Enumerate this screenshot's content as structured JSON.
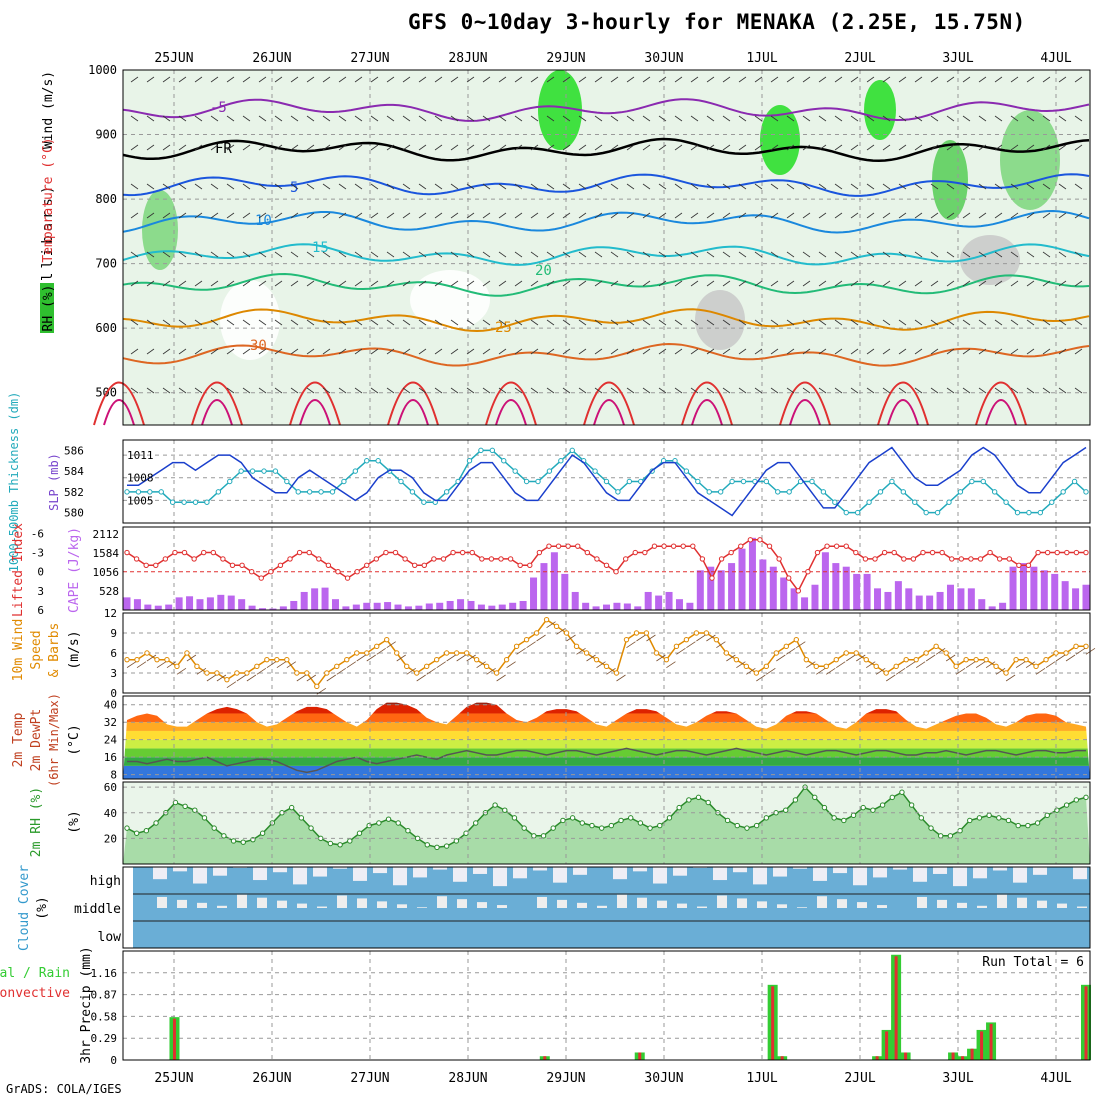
{
  "title": "GFS 0~10day 3-hourly for MENAKA (2.25E, 15.75N)",
  "credit": "GrADS: COLA/IGES",
  "colors": {
    "rh": "#2fbf2f",
    "temp": "#e03030",
    "lifted": "#e03030",
    "cape": "#bb66ee",
    "slp": "#1a3fcc",
    "thick": "#22aabb",
    "wind": "#e08a00",
    "rh2m": "#2a9a2a",
    "cloud": "#3399cc",
    "precip_total": "#33cc33",
    "precip_conv": "#e03030"
  },
  "chart_data": {
    "type": "meteogram",
    "x_dates": [
      "25JUN",
      "26JUN",
      "27JUN",
      "28JUN",
      "29JUN",
      "30JUN",
      "1JUL",
      "2JUL",
      "3JUL",
      "4JUL"
    ],
    "panels": {
      "upper_air": {
        "ylabels": [
          "Wind (m/s)",
          "Temperature (°C)",
          "RH (%)"
        ],
        "yaxis_label": "(millibars)",
        "ticks": [
          500,
          600,
          700,
          800,
          900,
          1000
        ],
        "isotherm_labels": [
          "-5",
          "FR",
          "5",
          "10",
          "15",
          "20",
          "25",
          "30"
        ]
      },
      "slp_thickness": {
        "left_label": "1000-500mb Thickness (dm)",
        "right_label": "SLP (mb)",
        "left_ticks": [
          580,
          582,
          584,
          586
        ],
        "right_ticks": [
          1005,
          1008,
          1011
        ],
        "slp": [
          1007,
          1007,
          1008,
          1009,
          1010,
          1010,
          1009,
          1010,
          1011,
          1011,
          1010,
          1008,
          1007,
          1006,
          1006,
          1008,
          1009,
          1008,
          1007,
          1006,
          1005,
          1006,
          1008,
          1009,
          1009,
          1008,
          1006,
          1005,
          1005,
          1007,
          1009,
          1010,
          1010,
          1008,
          1006,
          1005,
          1005,
          1007,
          1009,
          1011,
          1010,
          1008,
          1006,
          1005,
          1005,
          1007,
          1009,
          1010,
          1010,
          1008,
          1006,
          1005,
          1004,
          1003,
          1005,
          1007,
          1009,
          1010,
          1010,
          1008,
          1006,
          1004,
          1004,
          1006,
          1008,
          1010,
          1011,
          1012,
          1010,
          1008,
          1007,
          1007,
          1008,
          1009,
          1011,
          1012,
          1011,
          1009,
          1007,
          1006,
          1006,
          1008,
          1010,
          1011,
          1012
        ],
        "thickness": [
          582,
          582,
          582,
          582,
          581,
          581,
          581,
          581,
          582,
          583,
          584,
          584,
          584,
          584,
          583,
          582,
          582,
          582,
          582,
          583,
          584,
          585,
          585,
          584,
          583,
          582,
          581,
          581,
          582,
          583,
          585,
          586,
          586,
          585,
          584,
          583,
          583,
          584,
          585,
          586,
          585,
          584,
          583,
          582,
          583,
          583,
          584,
          585,
          585,
          584,
          583,
          582,
          582,
          583,
          583,
          583,
          583,
          582,
          582,
          583,
          583,
          582,
          581,
          580,
          580,
          581,
          582,
          583,
          582,
          581,
          580,
          580,
          581,
          582,
          583,
          583,
          582,
          581,
          580,
          580,
          580,
          581,
          582,
          583,
          582
        ]
      },
      "lifted_cape": {
        "left_label": "Lifted Index",
        "right_label": "CAPE (J/kg)",
        "left_ticks": [
          -6,
          -3,
          0,
          3,
          6
        ],
        "right_ticks": [
          528,
          1056,
          1584,
          2112
        ],
        "lifted_index": [
          -3,
          -2,
          -1,
          -1,
          -2,
          -3,
          -3,
          -2,
          -3,
          -3,
          -2,
          -1,
          -1,
          0,
          1,
          0,
          -1,
          -2,
          -3,
          -3,
          -2,
          -1,
          0,
          1,
          0,
          -1,
          -2,
          -3,
          -3,
          -2,
          -1,
          -1,
          -2,
          -2,
          -3,
          -3,
          -3,
          -2,
          -2,
          -2,
          -2,
          -1,
          -1,
          -3,
          -4,
          -4,
          -4,
          -4,
          -3,
          -2,
          -1,
          0,
          -2,
          -3,
          -3,
          -4,
          -4,
          -4,
          -4,
          -4,
          -2,
          1,
          -2,
          -3,
          -4,
          -5,
          -5,
          -4,
          -2,
          1,
          3,
          0,
          -3,
          -4,
          -4,
          -4,
          -3,
          -2,
          -2,
          -3,
          -3,
          -2,
          -2,
          -3,
          -3,
          -3,
          -2,
          -2,
          -2,
          -2,
          -3,
          -2,
          -2,
          -1,
          -1,
          -3,
          -3,
          -3,
          -3,
          -3,
          -3
        ],
        "cape": [
          350,
          300,
          150,
          120,
          150,
          350,
          380,
          300,
          350,
          420,
          400,
          300,
          120,
          50,
          40,
          100,
          250,
          500,
          600,
          620,
          300,
          100,
          150,
          200,
          200,
          220,
          150,
          100,
          120,
          180,
          200,
          250,
          300,
          250,
          150,
          120,
          150,
          200,
          250,
          900,
          1300,
          1600,
          1000,
          500,
          200,
          100,
          150,
          200,
          180,
          100,
          500,
          400,
          500,
          300,
          200,
          1100,
          1200,
          1100,
          1300,
          1700,
          2000,
          1400,
          1200,
          900,
          600,
          350,
          700,
          1600,
          1300,
          1200,
          1000,
          1000,
          600,
          500,
          800,
          600,
          400,
          400,
          500,
          700,
          600,
          600,
          300,
          100,
          200,
          1200,
          1300,
          1200,
          1100,
          1000,
          800,
          600,
          700
        ]
      },
      "wind10m": {
        "ylabel": "10m Wind Speed & Barbs (m/s)",
        "ticks": [
          0,
          3,
          6,
          9,
          12
        ],
        "speed": [
          5,
          5,
          6,
          5,
          5,
          4,
          6,
          4,
          3,
          3,
          2,
          3,
          3,
          4,
          5,
          5,
          5,
          3,
          3,
          1,
          3,
          4,
          5,
          6,
          6,
          7,
          8,
          6,
          4,
          3,
          4,
          5,
          6,
          6,
          6,
          5,
          4,
          3,
          5,
          7,
          8,
          9,
          11,
          10,
          9,
          7,
          6,
          5,
          4,
          3,
          8,
          9,
          9,
          6,
          5,
          7,
          8,
          9,
          9,
          8,
          6,
          5,
          4,
          3,
          4,
          6,
          7,
          8,
          5,
          4,
          4,
          5,
          6,
          6,
          5,
          4,
          3,
          4,
          5,
          5,
          6,
          7,
          6,
          4,
          5,
          5,
          5,
          4,
          3,
          5,
          5,
          4,
          5,
          6,
          6,
          7,
          7
        ]
      },
      "temp2m": {
        "ylabel": "2m Temp 2m DewPt (6hr Min/Max) (°C)",
        "ticks": [
          8,
          16,
          24,
          32,
          40
        ],
        "temp": [
          33,
          35,
          36,
          35,
          31,
          30,
          30,
          33,
          36,
          38,
          39,
          38,
          36,
          32,
          30,
          31,
          34,
          37,
          39,
          39,
          38,
          35,
          32,
          30,
          33,
          38,
          41,
          41,
          40,
          38,
          34,
          32,
          31,
          35,
          39,
          41,
          41,
          40,
          36,
          33,
          32,
          34,
          37,
          38,
          38,
          37,
          34,
          31,
          30,
          33,
          36,
          38,
          38,
          37,
          34,
          31,
          30,
          32,
          35,
          37,
          37,
          36,
          33,
          30,
          29,
          31,
          35,
          37,
          37,
          36,
          33,
          30,
          29,
          32,
          36,
          38,
          38,
          37,
          33,
          30,
          29,
          31,
          33,
          35,
          36,
          36,
          34,
          31,
          30,
          32,
          35,
          36,
          36,
          35,
          32,
          31,
          30
        ],
        "dewpt": [
          14,
          14,
          13,
          14,
          15,
          14,
          14,
          15,
          16,
          14,
          12,
          13,
          14,
          15,
          15,
          14,
          12,
          10,
          9,
          10,
          12,
          14,
          15,
          16,
          14,
          13,
          14,
          15,
          16,
          17,
          16,
          15,
          17,
          18,
          19,
          18,
          17,
          17,
          18,
          19,
          19,
          18,
          17,
          18,
          19,
          19,
          18,
          17,
          18,
          19,
          20,
          19,
          18,
          17,
          18,
          19,
          19,
          18,
          17,
          18,
          19,
          20,
          19,
          18,
          17,
          18,
          19,
          18,
          17,
          18,
          19,
          19,
          18,
          17,
          18,
          19,
          19,
          18,
          17,
          17,
          18,
          18,
          19,
          18,
          17,
          18,
          19,
          19,
          18,
          17,
          18,
          19,
          19,
          18,
          18,
          19,
          19
        ]
      },
      "rh2m": {
        "ylabel": "2m RH (%)",
        "ticks": [
          20,
          40,
          60
        ],
        "rh": [
          28,
          24,
          26,
          32,
          40,
          48,
          45,
          42,
          36,
          28,
          22,
          18,
          17,
          19,
          24,
          32,
          40,
          44,
          36,
          28,
          20,
          16,
          15,
          18,
          24,
          30,
          32,
          35,
          32,
          26,
          20,
          15,
          13,
          14,
          18,
          24,
          32,
          40,
          46,
          42,
          36,
          28,
          22,
          22,
          28,
          34,
          36,
          32,
          30,
          28,
          30,
          34,
          36,
          32,
          28,
          30,
          36,
          44,
          50,
          52,
          48,
          40,
          34,
          30,
          28,
          30,
          36,
          40,
          42,
          50,
          60,
          52,
          44,
          36,
          34,
          38,
          44,
          42,
          46,
          52,
          56,
          46,
          36,
          28,
          22,
          22,
          26,
          34,
          36,
          38,
          36,
          34,
          30,
          30,
          32,
          38,
          42,
          46,
          50,
          52
        ]
      },
      "cloud": {
        "ylabel": "Cloud Cover (%)",
        "levels": [
          "high",
          "middle",
          "low"
        ]
      },
      "precip": {
        "ylabel": "3hr Precip (mm)",
        "legend": [
          "Total / Rain",
          "Convective"
        ],
        "ticks": [
          0,
          0.29,
          0.58,
          0.87,
          1.16
        ],
        "run_total": "Run Total = 6",
        "total": [
          0,
          0,
          0,
          0,
          0,
          0.57,
          0,
          0,
          0,
          0,
          0,
          0,
          0,
          0,
          0,
          0,
          0,
          0,
          0,
          0,
          0,
          0,
          0,
          0,
          0,
          0,
          0,
          0,
          0,
          0,
          0,
          0,
          0,
          0,
          0,
          0,
          0,
          0,
          0,
          0,
          0,
          0,
          0,
          0,
          0.05,
          0,
          0,
          0,
          0,
          0,
          0,
          0,
          0,
          0,
          0.1,
          0,
          0,
          0,
          0,
          0,
          0,
          0,
          0,
          0,
          0,
          0,
          0,
          0,
          1.0,
          0.05,
          0,
          0,
          0,
          0,
          0,
          0,
          0,
          0,
          0,
          0.05,
          0.4,
          1.4,
          0.1,
          0,
          0,
          0,
          0,
          0.1,
          0.05,
          0.15,
          0.4,
          0.5,
          0,
          0,
          0,
          0,
          0,
          0,
          0,
          0,
          0,
          1.0
        ],
        "convective": [
          0,
          0,
          0,
          0,
          0,
          0.55,
          0,
          0,
          0,
          0,
          0,
          0,
          0,
          0,
          0,
          0,
          0,
          0,
          0,
          0,
          0,
          0,
          0,
          0,
          0,
          0,
          0,
          0,
          0,
          0,
          0,
          0,
          0,
          0,
          0,
          0,
          0,
          0,
          0,
          0,
          0,
          0,
          0,
          0,
          0.05,
          0,
          0,
          0,
          0,
          0,
          0,
          0,
          0,
          0,
          0.1,
          0,
          0,
          0,
          0,
          0,
          0,
          0,
          0,
          0,
          0,
          0,
          0,
          0,
          0.98,
          0.05,
          0,
          0,
          0,
          0,
          0,
          0,
          0,
          0,
          0,
          0.05,
          0.38,
          1.38,
          0.1,
          0,
          0,
          0,
          0,
          0.1,
          0.05,
          0.15,
          0.38,
          0.48,
          0,
          0,
          0,
          0,
          0,
          0,
          0,
          0,
          0,
          0.98
        ]
      }
    }
  }
}
